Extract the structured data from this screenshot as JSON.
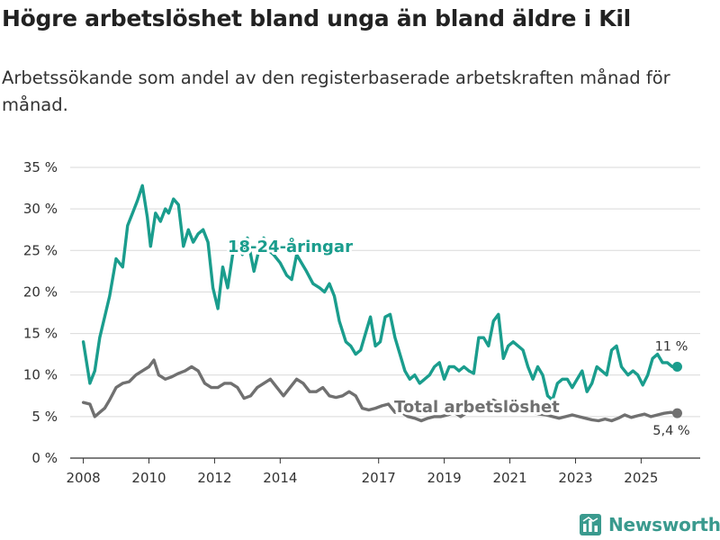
{
  "title": "Högre arbetslöshet bland unga än bland äldre i Kil",
  "subtitle": "Arbetssökande som andel av den registerbaserade arbetskraften månad för månad.",
  "brand": {
    "name": "Newsworthy",
    "icon": "newsworthy-logo-icon",
    "color": "#3a9a8e"
  },
  "chart_data": {
    "type": "line",
    "title": "Högre arbetslöshet bland unga än bland äldre i Kil",
    "subtitle": "Arbetssökande som andel av den registerbaserade arbetskraften månad för månad.",
    "xlabel": "",
    "ylabel": "",
    "ylim": [
      0,
      35
    ],
    "xlim": [
      2007.6,
      2026.8
    ],
    "grid": true,
    "y_ticks": [
      0,
      5,
      10,
      15,
      20,
      25,
      30,
      35
    ],
    "y_tick_labels": [
      "0 %",
      "5 %",
      "10 %",
      "15 %",
      "20 %",
      "25 %",
      "30 %",
      "35 %"
    ],
    "x_ticks": [
      2008,
      2010,
      2012,
      2014,
      2017,
      2019,
      2021,
      2023,
      2025
    ],
    "x_tick_labels": [
      "2008",
      "2010",
      "2012",
      "2014",
      "2017",
      "2019",
      "2021",
      "2023",
      "2025"
    ],
    "series": [
      {
        "name": "18-24-åringar",
        "color": "#1a9d8d",
        "end_label": "11 %",
        "end_value": 11,
        "label_position": "inline-upper-left",
        "x": [
          2008.0,
          2008.2,
          2008.35,
          2008.5,
          2008.65,
          2008.8,
          2009.0,
          2009.2,
          2009.35,
          2009.5,
          2009.65,
          2009.8,
          2009.95,
          2010.05,
          2010.2,
          2010.35,
          2010.5,
          2010.6,
          2010.75,
          2010.9,
          2011.05,
          2011.2,
          2011.35,
          2011.5,
          2011.65,
          2011.8,
          2011.95,
          2012.1,
          2012.25,
          2012.4,
          2012.55,
          2012.7,
          2012.85,
          2013.0,
          2013.2,
          2013.35,
          2013.5,
          2013.65,
          2013.8,
          2014.0,
          2014.2,
          2014.35,
          2014.5,
          2014.65,
          2014.8,
          2015.0,
          2015.2,
          2015.35,
          2015.5,
          2015.65,
          2015.8,
          2016.0,
          2016.15,
          2016.3,
          2016.45,
          2016.6,
          2016.75,
          2016.9,
          2017.05,
          2017.2,
          2017.35,
          2017.5,
          2017.65,
          2017.8,
          2017.95,
          2018.1,
          2018.25,
          2018.4,
          2018.55,
          2018.7,
          2018.85,
          2019.0,
          2019.15,
          2019.3,
          2019.45,
          2019.6,
          2019.75,
          2019.9,
          2020.05,
          2020.2,
          2020.35,
          2020.5,
          2020.65,
          2020.8,
          2020.95,
          2021.1,
          2021.25,
          2021.4,
          2021.55,
          2021.7,
          2021.85,
          2022.0,
          2022.15,
          2022.3,
          2022.45,
          2022.6,
          2022.75,
          2022.9,
          2023.05,
          2023.2,
          2023.35,
          2023.5,
          2023.65,
          2023.8,
          2023.95,
          2024.1,
          2024.25,
          2024.4,
          2024.5,
          2024.6,
          2024.75,
          2024.9,
          2025.05,
          2025.2,
          2025.35,
          2025.5,
          2025.65,
          2025.8,
          2025.95,
          2026.1
        ],
        "values": [
          14.0,
          9.0,
          10.5,
          14.5,
          17.0,
          19.5,
          24.0,
          23.0,
          28.0,
          29.5,
          31.0,
          32.8,
          29.0,
          25.5,
          29.5,
          28.5,
          30.0,
          29.5,
          31.2,
          30.5,
          25.5,
          27.5,
          26.0,
          27.0,
          27.5,
          26.0,
          20.5,
          18.0,
          23.0,
          20.5,
          24.5,
          26.0,
          24.5,
          26.5,
          22.5,
          25.0,
          26.5,
          25.0,
          24.5,
          23.5,
          22.0,
          21.5,
          24.5,
          23.5,
          22.5,
          21.0,
          20.5,
          20.0,
          21.0,
          19.5,
          16.5,
          14.0,
          13.5,
          12.5,
          13.0,
          15.0,
          17.0,
          13.5,
          14.0,
          17.0,
          17.3,
          14.5,
          12.5,
          10.5,
          9.5,
          10.0,
          9.0,
          9.5,
          10.0,
          11.0,
          11.5,
          9.5,
          11.0,
          11.0,
          10.5,
          11.0,
          10.5,
          10.2,
          14.5,
          14.5,
          13.5,
          16.5,
          17.3,
          12.0,
          13.5,
          14.0,
          13.5,
          13.0,
          11.0,
          9.5,
          11.0,
          10.0,
          7.5,
          7.0,
          9.0,
          9.5,
          9.5,
          8.5,
          9.5,
          10.5,
          8.0,
          9.0,
          11.0,
          10.5,
          10.0,
          13.0,
          13.5,
          11.0,
          10.5,
          10.0,
          10.5,
          10.0,
          8.8,
          10.0,
          12.0,
          12.5,
          11.5,
          11.5,
          11.0,
          11.0
        ]
      },
      {
        "name": "Total arbetslöshet",
        "color": "#707070",
        "end_label": "5,4 %",
        "end_value": 5.4,
        "label_position": "inline-center",
        "x": [
          2008.0,
          2008.2,
          2008.35,
          2008.5,
          2008.65,
          2008.8,
          2009.0,
          2009.2,
          2009.4,
          2009.6,
          2009.8,
          2010.0,
          2010.15,
          2010.3,
          2010.5,
          2010.7,
          2010.9,
          2011.1,
          2011.3,
          2011.5,
          2011.7,
          2011.9,
          2012.1,
          2012.3,
          2012.5,
          2012.7,
          2012.9,
          2013.1,
          2013.3,
          2013.5,
          2013.7,
          2013.9,
          2014.1,
          2014.3,
          2014.5,
          2014.7,
          2014.9,
          2015.1,
          2015.3,
          2015.5,
          2015.7,
          2015.9,
          2016.1,
          2016.3,
          2016.5,
          2016.7,
          2016.9,
          2017.1,
          2017.3,
          2017.5,
          2017.7,
          2017.9,
          2018.1,
          2018.3,
          2018.5,
          2018.7,
          2018.9,
          2019.1,
          2019.3,
          2019.5,
          2019.7,
          2019.9,
          2020.1,
          2020.3,
          2020.5,
          2020.7,
          2020.9,
          2021.1,
          2021.3,
          2021.5,
          2021.7,
          2021.9,
          2022.1,
          2022.3,
          2022.5,
          2022.7,
          2022.9,
          2023.1,
          2023.3,
          2023.5,
          2023.7,
          2023.9,
          2024.1,
          2024.3,
          2024.5,
          2024.7,
          2024.9,
          2025.1,
          2025.3,
          2025.5,
          2025.7,
          2025.9,
          2026.1
        ],
        "values": [
          6.7,
          6.5,
          5.0,
          5.5,
          6.0,
          7.0,
          8.5,
          9.0,
          9.2,
          10.0,
          10.5,
          11.0,
          11.8,
          10.0,
          9.5,
          9.8,
          10.2,
          10.5,
          11.0,
          10.5,
          9.0,
          8.5,
          8.5,
          9.0,
          9.0,
          8.5,
          7.2,
          7.5,
          8.5,
          9.0,
          9.5,
          8.5,
          7.5,
          8.5,
          9.5,
          9.0,
          8.0,
          8.0,
          8.5,
          7.5,
          7.3,
          7.5,
          8.0,
          7.5,
          6.0,
          5.8,
          6.0,
          6.3,
          6.5,
          5.5,
          5.5,
          5.0,
          4.8,
          4.5,
          4.8,
          5.0,
          5.0,
          5.2,
          5.5,
          5.0,
          5.5,
          5.7,
          6.0,
          6.8,
          7.0,
          6.5,
          6.0,
          6.0,
          5.8,
          5.5,
          5.5,
          5.3,
          5.2,
          5.0,
          4.8,
          5.0,
          5.2,
          5.0,
          4.8,
          4.6,
          4.5,
          4.7,
          4.5,
          4.8,
          5.2,
          4.9,
          5.1,
          5.3,
          5.0,
          5.2,
          5.4,
          5.5,
          5.4
        ]
      }
    ]
  }
}
